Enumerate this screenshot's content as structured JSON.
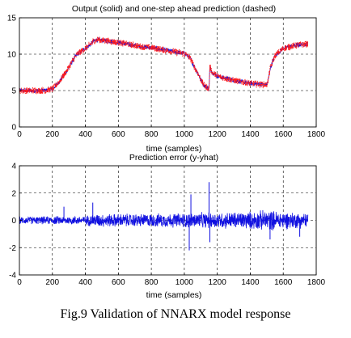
{
  "caption": "Fig.9 Validation of NNARX model response",
  "chart_data": [
    {
      "type": "line",
      "title": "Output (solid) and one-step ahead prediction (dashed)",
      "xlabel": "time (samples)",
      "ylabel": "",
      "xlim": [
        0,
        1800
      ],
      "ylim": [
        0,
        15
      ],
      "xticks": [
        "0",
        "200",
        "400",
        "600",
        "800",
        "1000",
        "1200",
        "1400",
        "1600",
        "1800"
      ],
      "yticks": [
        "0",
        "5",
        "10",
        "15"
      ],
      "grid": true,
      "colors": [
        "#1010e0",
        "#ff1a1a"
      ],
      "series": [
        {
          "style": "solid",
          "color": "#1010e0",
          "x": [
            0,
            50,
            100,
            150,
            200,
            225,
            250,
            275,
            300,
            325,
            350,
            375,
            400,
            425,
            450,
            475,
            500,
            550,
            600,
            650,
            700,
            750,
            800,
            850,
            900,
            950,
            1000,
            1020,
            1040,
            1060,
            1080,
            1100,
            1120,
            1140,
            1150,
            1155,
            1170,
            1200,
            1250,
            1300,
            1350,
            1400,
            1450,
            1500,
            1510,
            1520,
            1550,
            1600,
            1650,
            1700,
            1750
          ],
          "y": [
            5.0,
            5.0,
            5.0,
            5.0,
            5.2,
            5.8,
            6.5,
            7.3,
            8.2,
            9.2,
            10.0,
            10.4,
            10.8,
            11.2,
            11.8,
            12.0,
            11.9,
            11.8,
            11.6,
            11.4,
            11.2,
            11.0,
            10.9,
            10.7,
            10.5,
            10.3,
            10.1,
            9.8,
            9.3,
            8.3,
            7.5,
            6.5,
            5.7,
            5.4,
            5.2,
            8.2,
            7.5,
            7.0,
            6.7,
            6.4,
            6.2,
            6.0,
            5.9,
            5.8,
            6.5,
            8.0,
            9.8,
            10.8,
            11.1,
            11.3,
            11.4
          ],
          "noise": 0.3
        },
        {
          "style": "dashed",
          "color": "#ff1a1a",
          "x": [
            0,
            50,
            100,
            150,
            200,
            225,
            250,
            275,
            300,
            325,
            350,
            375,
            400,
            425,
            450,
            475,
            500,
            550,
            600,
            650,
            700,
            750,
            800,
            850,
            900,
            950,
            1000,
            1020,
            1040,
            1060,
            1080,
            1100,
            1120,
            1140,
            1150,
            1155,
            1170,
            1200,
            1250,
            1300,
            1350,
            1400,
            1450,
            1500,
            1510,
            1520,
            1550,
            1600,
            1650,
            1700,
            1750
          ],
          "y": [
            5.0,
            5.0,
            5.0,
            5.0,
            5.2,
            5.8,
            6.5,
            7.3,
            8.2,
            9.2,
            10.0,
            10.4,
            10.8,
            11.2,
            11.8,
            12.0,
            11.9,
            11.8,
            11.6,
            11.4,
            11.2,
            11.0,
            10.9,
            10.7,
            10.5,
            10.3,
            10.1,
            9.8,
            9.3,
            8.3,
            7.5,
            6.5,
            5.7,
            5.4,
            5.2,
            8.2,
            7.5,
            7.0,
            6.7,
            6.4,
            6.2,
            6.0,
            5.9,
            5.8,
            6.5,
            8.0,
            9.8,
            10.8,
            11.1,
            11.3,
            11.4
          ],
          "noise": 0.45
        }
      ]
    },
    {
      "type": "line",
      "title": "Prediction error (y-yhat)",
      "xlabel": "time (samples)",
      "ylabel": "",
      "xlim": [
        0,
        1800
      ],
      "ylim": [
        -4,
        4
      ],
      "xticks": [
        "0",
        "200",
        "400",
        "600",
        "800",
        "1000",
        "1200",
        "1400",
        "1600",
        "1800"
      ],
      "yticks": [
        "-4",
        "-2",
        "0",
        "2",
        "4"
      ],
      "grid": true,
      "series": [
        {
          "style": "solid",
          "color": "#1010e0",
          "x": [
            0,
            400,
            450,
            800,
            1000,
            1200,
            1400,
            1500,
            1600,
            1750
          ],
          "amplitude": [
            0.25,
            0.3,
            0.45,
            0.45,
            0.5,
            0.55,
            0.6,
            0.7,
            0.6,
            0.5
          ],
          "spikes": [
            {
              "x": 270,
              "y": 1.0
            },
            {
              "x": 445,
              "y": 1.3
            },
            {
              "x": 1030,
              "y": -2.2
            },
            {
              "x": 1040,
              "y": 1.9
            },
            {
              "x": 1150,
              "y": 2.8
            },
            {
              "x": 1155,
              "y": -1.6
            },
            {
              "x": 1520,
              "y": -1.4
            },
            {
              "x": 1700,
              "y": -1.2
            }
          ]
        }
      ]
    }
  ]
}
